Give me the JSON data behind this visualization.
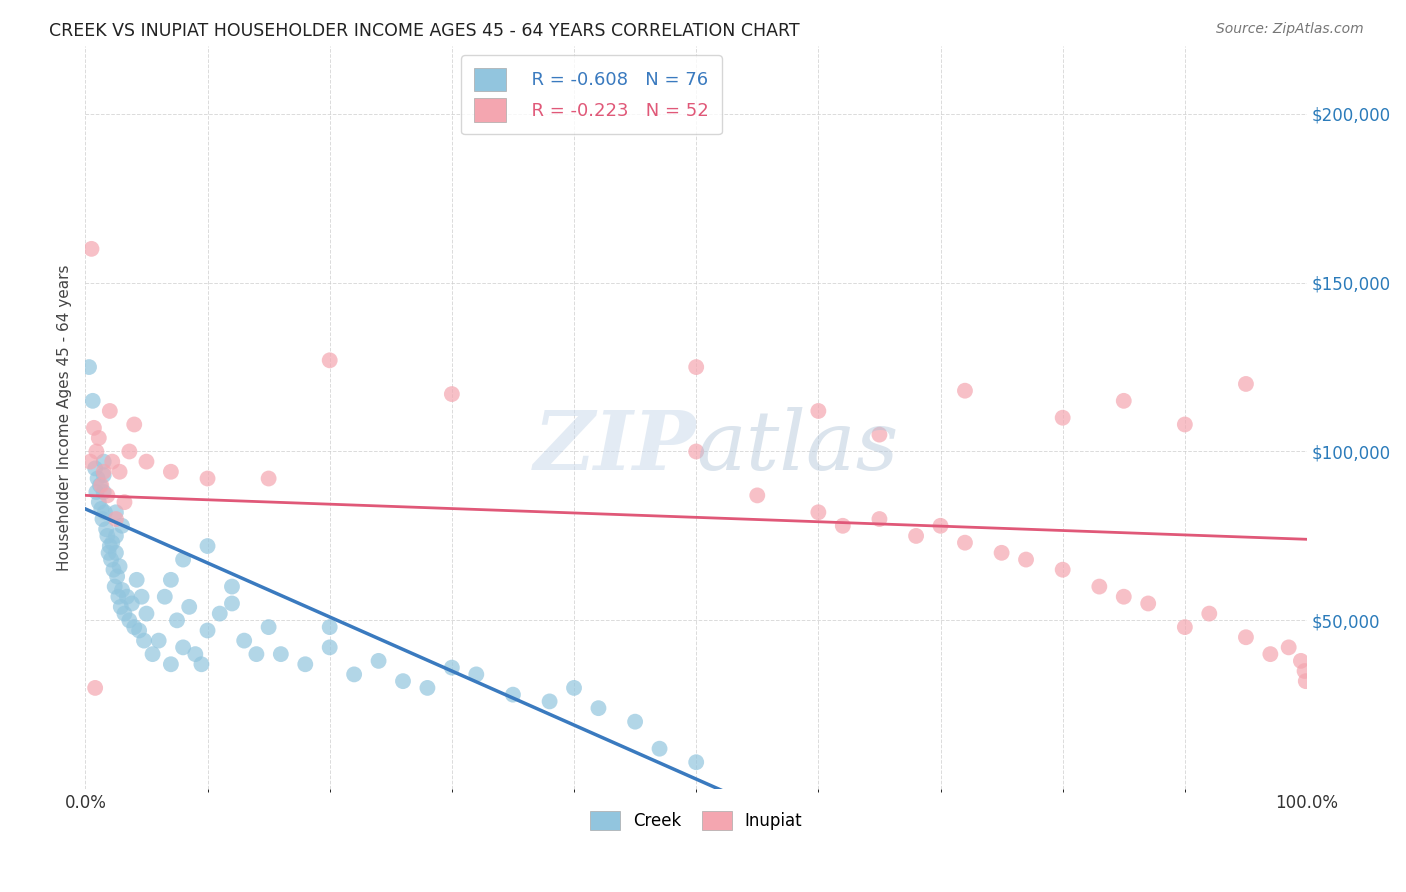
{
  "title": "CREEK VS INUPIAT HOUSEHOLDER INCOME AGES 45 - 64 YEARS CORRELATION CHART",
  "source": "Source: ZipAtlas.com",
  "ylabel": "Householder Income Ages 45 - 64 years",
  "xlim": [
    0,
    1.0
  ],
  "ylim": [
    0,
    220000
  ],
  "creek_color": "#92c5de",
  "inupiat_color": "#f4a6b0",
  "trendline_creek_color": "#3a7abf",
  "trendline_inupiat_color": "#e05878",
  "watermark_zip": "ZIP",
  "watermark_atlas": "atlas",
  "legend_creek_r": "R = -0.608",
  "legend_creek_n": "N = 76",
  "legend_inupiat_r": "R = -0.223",
  "legend_inupiat_n": "N = 52",
  "creek_intercept": 83000,
  "creek_slope": -160000,
  "creek_trendline_x_end": 0.52,
  "creek_trendline_dashed_end": 0.58,
  "inupiat_intercept": 87000,
  "inupiat_slope": -13000,
  "background_color": "#ffffff",
  "grid_color": "#cccccc",
  "right_label_color": "#2b7bba",
  "creek_x": [
    0.003,
    0.006,
    0.008,
    0.009,
    0.01,
    0.011,
    0.012,
    0.013,
    0.014,
    0.015,
    0.016,
    0.017,
    0.018,
    0.019,
    0.02,
    0.021,
    0.022,
    0.023,
    0.024,
    0.025,
    0.026,
    0.027,
    0.028,
    0.029,
    0.03,
    0.032,
    0.034,
    0.036,
    0.038,
    0.04,
    0.042,
    0.044,
    0.046,
    0.048,
    0.05,
    0.055,
    0.06,
    0.065,
    0.07,
    0.075,
    0.08,
    0.085,
    0.09,
    0.095,
    0.1,
    0.11,
    0.12,
    0.13,
    0.14,
    0.15,
    0.16,
    0.18,
    0.2,
    0.22,
    0.24,
    0.26,
    0.28,
    0.3,
    0.32,
    0.35,
    0.38,
    0.4,
    0.42,
    0.45,
    0.47,
    0.5,
    0.1,
    0.07,
    0.03,
    0.015,
    0.025,
    0.08,
    0.12,
    0.2,
    0.025,
    0.015
  ],
  "creek_y": [
    125000,
    115000,
    95000,
    88000,
    92000,
    85000,
    90000,
    83000,
    80000,
    88000,
    82000,
    77000,
    75000,
    70000,
    72000,
    68000,
    73000,
    65000,
    60000,
    70000,
    63000,
    57000,
    66000,
    54000,
    59000,
    52000,
    57000,
    50000,
    55000,
    48000,
    62000,
    47000,
    57000,
    44000,
    52000,
    40000,
    44000,
    57000,
    37000,
    50000,
    42000,
    54000,
    40000,
    37000,
    47000,
    52000,
    60000,
    44000,
    40000,
    48000,
    40000,
    37000,
    42000,
    34000,
    38000,
    32000,
    30000,
    36000,
    34000,
    28000,
    26000,
    30000,
    24000,
    20000,
    12000,
    8000,
    72000,
    62000,
    78000,
    93000,
    82000,
    68000,
    55000,
    48000,
    75000,
    97000
  ],
  "inupiat_x": [
    0.004,
    0.007,
    0.009,
    0.011,
    0.013,
    0.015,
    0.018,
    0.02,
    0.022,
    0.025,
    0.028,
    0.032,
    0.036,
    0.04,
    0.05,
    0.07,
    0.1,
    0.15,
    0.2,
    0.3,
    0.5,
    0.55,
    0.6,
    0.62,
    0.65,
    0.68,
    0.7,
    0.72,
    0.75,
    0.77,
    0.8,
    0.83,
    0.85,
    0.87,
    0.9,
    0.92,
    0.95,
    0.97,
    0.985,
    0.995,
    0.998,
    0.999,
    0.6,
    0.85,
    0.9,
    0.72,
    0.5,
    0.65,
    0.8,
    0.95,
    0.005,
    0.008
  ],
  "inupiat_y": [
    97000,
    107000,
    100000,
    104000,
    90000,
    94000,
    87000,
    112000,
    97000,
    80000,
    94000,
    85000,
    100000,
    108000,
    97000,
    94000,
    92000,
    92000,
    127000,
    117000,
    100000,
    87000,
    82000,
    78000,
    80000,
    75000,
    78000,
    73000,
    70000,
    68000,
    65000,
    60000,
    57000,
    55000,
    48000,
    52000,
    45000,
    40000,
    42000,
    38000,
    35000,
    32000,
    112000,
    115000,
    108000,
    118000,
    125000,
    105000,
    110000,
    120000,
    160000,
    30000
  ]
}
